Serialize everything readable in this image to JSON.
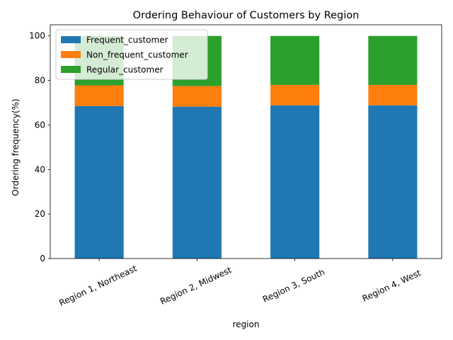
{
  "chart_data": {
    "type": "bar",
    "stacked": true,
    "title": "Ordering Behaviour of Customers by Region",
    "xlabel": "region",
    "ylabel": "Ordering frequency(%)",
    "categories": [
      "Region 1, Northeast",
      "Region 2, Midwest",
      "Region 3, South",
      "Region 4, West"
    ],
    "ylim": [
      0,
      105
    ],
    "yticks": [
      0,
      20,
      40,
      60,
      80,
      100
    ],
    "grid": false,
    "legend_position": "top-left",
    "series": [
      {
        "name": "Frequent_customer",
        "color": "#1f77b4",
        "values": [
          68.5,
          68.2,
          68.8,
          68.8
        ]
      },
      {
        "name": "Non_frequent_customer",
        "color": "#ff7f0e",
        "values": [
          9.3,
          9.3,
          9.2,
          9.2
        ]
      },
      {
        "name": "Regular_customer",
        "color": "#2ca02c",
        "values": [
          22.2,
          22.5,
          22.0,
          22.0
        ]
      }
    ]
  }
}
